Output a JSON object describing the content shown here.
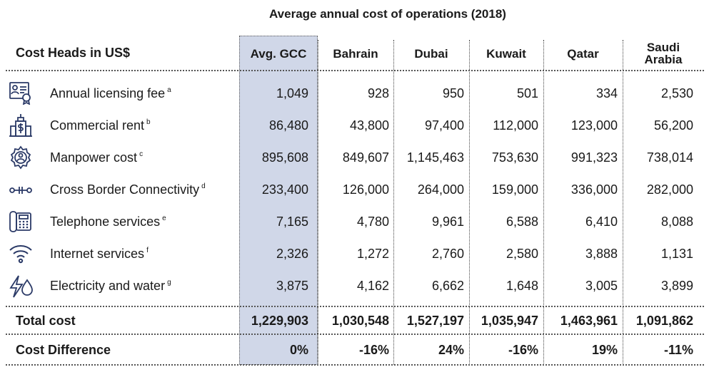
{
  "title": "Average annual cost of operations (2018)",
  "header": {
    "first": "Cost Heads in US$",
    "columns": [
      "Avg. GCC",
      "Bahrain",
      "Dubai",
      "Kuwait",
      "Qatar",
      "Saudi Arabia"
    ]
  },
  "rows": [
    {
      "label": "Annual licensing fee",
      "note": "a",
      "icon": "license-certificate-icon",
      "values": [
        "1,049",
        "928",
        "950",
        "501",
        "334",
        "2,530"
      ]
    },
    {
      "label": "Commercial rent",
      "note": "b",
      "icon": "building-dollar-icon",
      "values": [
        "86,480",
        "43,800",
        "97,400",
        "112,000",
        "123,000",
        "56,200"
      ]
    },
    {
      "label": "Manpower cost",
      "note": "c",
      "icon": "gear-person-icon",
      "values": [
        "895,608",
        "849,607",
        "1,145,463",
        "753,630",
        "991,323",
        "738,014"
      ]
    },
    {
      "label": "Cross Border Connectivity",
      "note": "d",
      "icon": "connectivity-icon",
      "values": [
        "233,400",
        "126,000",
        "264,000",
        "159,000",
        "336,000",
        "282,000"
      ]
    },
    {
      "label": "Telephone services",
      "note": "e",
      "icon": "telephone-icon",
      "values": [
        "7,165",
        "4,780",
        "9,961",
        "6,588",
        "6,410",
        "8,088"
      ]
    },
    {
      "label": "Internet services",
      "note": "f",
      "icon": "wifi-icon",
      "values": [
        "2,326",
        "1,272",
        "2,760",
        "2,580",
        "3,888",
        "1,131"
      ]
    },
    {
      "label": "Electricity and water",
      "note": "g",
      "icon": "electricity-water-icon",
      "values": [
        "3,875",
        "4,162",
        "6,662",
        "1,648",
        "3,005",
        "3,899"
      ]
    }
  ],
  "total": {
    "label": "Total cost",
    "values": [
      "1,229,903",
      "1,030,548",
      "1,527,197",
      "1,035,947",
      "1,463,961",
      "1,091,862"
    ]
  },
  "difference": {
    "label": "Cost Difference",
    "values": [
      "0%",
      "-16%",
      "24%",
      "-16%",
      "19%",
      "-11%"
    ]
  }
}
